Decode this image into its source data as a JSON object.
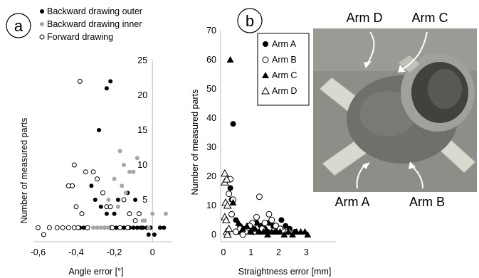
{
  "colors": {
    "backward_outer": "#000000",
    "backward_inner": "#a6a6a6",
    "forward": "#000000",
    "axis": "#bfbfbf",
    "photo_bg": "#8c8f87",
    "photo_part": "#6e716b",
    "photo_arm": "#d9d9cf"
  },
  "chart_data": [
    {
      "panel": "a",
      "type": "scatter",
      "xlabel": "Angle error [°]",
      "ylabel": "Number of measured parts",
      "xlim": [
        -0.62,
        0.1
      ],
      "ylim": [
        0,
        25
      ],
      "x_ticks": [
        -0.6,
        -0.4,
        -0.2,
        0
      ],
      "x_tick_labels": [
        "-0,6",
        "-0,4",
        "-0,2",
        "0"
      ],
      "y_ticks": [
        5,
        10,
        15,
        20,
        25
      ],
      "y_tick_labels": [
        "5",
        "10",
        "15",
        "20",
        "25"
      ],
      "legend": [
        {
          "name": "Backward drawing outer",
          "marker": "filled-circle",
          "color": "#000000"
        },
        {
          "name": "Backward drawing inner",
          "marker": "filled-circle",
          "color": "#a6a6a6"
        },
        {
          "name": "Forward drawing",
          "marker": "open-circle",
          "color": "#000000"
        }
      ],
      "series": [
        {
          "name": "Backward drawing outer",
          "x": [
            -0.22,
            -0.24,
            -0.28,
            -0.32,
            -0.3,
            -0.13,
            -0.09,
            -0.18,
            -0.27,
            -0.24,
            -0.2,
            -0.36,
            -0.34,
            -0.25,
            -0.22,
            -0.19,
            -0.17,
            -0.15,
            -0.12,
            -0.1,
            -0.08,
            -0.06,
            -0.05,
            -0.03,
            -0.01,
            0.01,
            0.04,
            0.06,
            -0.02,
            -0.38
          ],
          "y": [
            22,
            21,
            15,
            7,
            5,
            6,
            5,
            5,
            4,
            3,
            3,
            1,
            1,
            1,
            1,
            1,
            1,
            1,
            1,
            1,
            1,
            1,
            1,
            1,
            1,
            0,
            1,
            1,
            0,
            1
          ]
        },
        {
          "name": "Backward drawing inner",
          "x": [
            -0.17,
            -0.08,
            -0.15,
            -0.12,
            -0.1,
            -0.2,
            -0.16,
            -0.14,
            -0.23,
            -0.18,
            0.0,
            -0.04,
            0.07,
            -0.31,
            -0.29,
            -0.27,
            -0.25,
            -0.23,
            -0.05,
            -0.02
          ],
          "y": [
            12,
            11,
            10,
            9,
            9,
            8,
            7,
            6,
            5,
            4,
            3,
            2,
            3,
            1,
            1,
            1,
            1,
            1,
            2,
            1
          ]
        },
        {
          "name": "Forward drawing",
          "x": [
            -0.38,
            -0.35,
            -0.41,
            -0.44,
            -0.42,
            -0.31,
            -0.29,
            -0.26,
            -0.24,
            -0.22,
            -0.4,
            -0.37,
            -0.15,
            -0.12,
            -0.09,
            -0.07,
            -0.6,
            -0.57,
            -0.54,
            -0.5,
            -0.47,
            -0.44,
            -0.41,
            -0.39,
            -0.34,
            -0.21,
            -0.17,
            -0.13
          ],
          "y": [
            22,
            9,
            10,
            7,
            7,
            9,
            8,
            6,
            4,
            4,
            4,
            3,
            5,
            3,
            2,
            3,
            1,
            0,
            1,
            1,
            1,
            1,
            1,
            1,
            1,
            1,
            1,
            1
          ]
        }
      ]
    },
    {
      "panel": "b",
      "type": "scatter",
      "xlabel": "Straightness error [mm]",
      "ylabel": "Number of measured parts",
      "xlim": [
        -0.1,
        3.3
      ],
      "ylim": [
        0,
        70
      ],
      "x_ticks": [
        0,
        1,
        2,
        3
      ],
      "x_tick_labels": [
        "0",
        "1",
        "2",
        "3"
      ],
      "y_ticks": [
        0,
        10,
        20,
        30,
        40,
        50,
        60,
        70
      ],
      "y_tick_labels": [
        "0",
        "10",
        "20",
        "30",
        "40",
        "50",
        "60",
        "70"
      ],
      "legend": [
        {
          "name": "Arm A",
          "marker": "filled-circle"
        },
        {
          "name": "Arm B",
          "marker": "open-circle"
        },
        {
          "name": "Arm C",
          "marker": "filled-triangle"
        },
        {
          "name": "Arm D",
          "marker": "open-triangle"
        }
      ],
      "series": [
        {
          "name": "Arm A",
          "x": [
            0.35,
            0.25,
            0.3,
            0.45,
            0.6,
            0.75,
            0.9,
            1.05,
            1.2,
            1.35,
            1.5,
            1.65,
            1.8,
            1.95,
            2.1,
            2.25,
            2.4,
            2.6,
            0.55,
            0.7,
            1.0,
            1.3,
            1.6,
            1.9,
            2.2
          ],
          "y": [
            38,
            16,
            12,
            5,
            3,
            2,
            3,
            2,
            4,
            3,
            2,
            4,
            3,
            2,
            5,
            3,
            2,
            1,
            1,
            1,
            1,
            1,
            1,
            1,
            1
          ]
        },
        {
          "name": "Arm B",
          "x": [
            0.25,
            0.2,
            0.35,
            0.3,
            1.3,
            1.2,
            1.05,
            1.65,
            1.75,
            0.95,
            1.5,
            1.9,
            2.05,
            2.2,
            0.6,
            0.8,
            1.4,
            1.1,
            0.45,
            0.7,
            2.35
          ],
          "y": [
            19,
            14,
            12,
            7,
            13,
            6,
            4,
            7,
            5,
            3,
            4,
            3,
            2,
            1,
            2,
            1,
            2,
            1,
            1,
            0,
            1
          ]
        },
        {
          "name": "Arm C",
          "x": [
            0.25,
            0.35,
            0.55,
            0.85,
            1.15,
            1.45,
            1.75,
            2.05,
            2.35,
            2.65,
            2.95,
            1.0,
            1.6,
            2.2,
            2.8,
            0.7,
            1.3,
            1.9,
            2.5,
            3.05
          ],
          "y": [
            60,
            11,
            4,
            3,
            2,
            1,
            1,
            1,
            1,
            1,
            1,
            1,
            0,
            0,
            1,
            2,
            1,
            1,
            0,
            0
          ]
        },
        {
          "name": "Arm D",
          "x": [
            0.05,
            0.05,
            0.08,
            0.12,
            0.15,
            0.05,
            0.1,
            0.12,
            0.15,
            0.2
          ],
          "y": [
            21,
            18,
            11,
            19,
            10,
            6,
            5,
            1,
            0,
            2
          ]
        }
      ]
    }
  ],
  "figure": {
    "panel_a_label": "a",
    "panel_b_label": "b",
    "photo_labels": {
      "arm_a": "Arm A",
      "arm_b": "Arm B",
      "arm_c": "Arm C",
      "arm_d": "Arm D"
    }
  }
}
